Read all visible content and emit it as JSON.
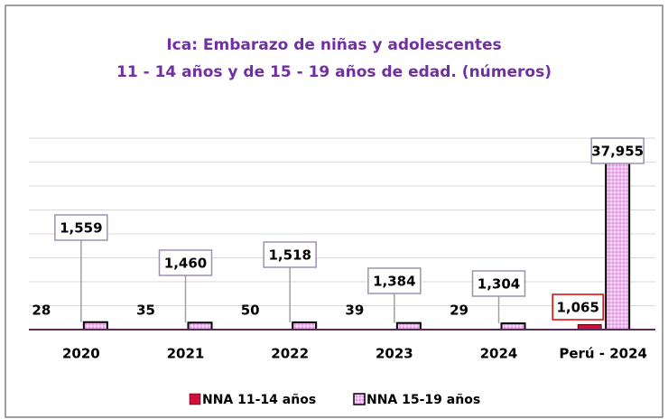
{
  "chart_data": {
    "type": "bar",
    "title": "Ica: Embarazo de niñas y adolescentes",
    "subtitle": "11 - 14 años y de 15 - 19 años de edad. (números)",
    "categories": [
      "2020",
      "2021",
      "2022",
      "2023",
      "2024",
      "Perú - 2024"
    ],
    "series": [
      {
        "name": "NNA 11-14 años",
        "color": "#d0103a",
        "values": [
          28,
          35,
          50,
          39,
          29,
          1065
        ],
        "value_labels": [
          "28",
          "35",
          "50",
          "39",
          "29",
          "1,065"
        ]
      },
      {
        "name": "NNA 15-19 años",
        "color": "#f0b8f0",
        "values": [
          1559,
          1460,
          1518,
          1384,
          1304,
          37955
        ],
        "value_labels": [
          "1,559",
          "1,460",
          "1,518",
          "1,384",
          "1,304",
          "37,955"
        ]
      }
    ],
    "ylim": [
      0,
      40000
    ],
    "yticks": [
      0,
      5000,
      10000,
      15000,
      20000,
      25000,
      30000,
      35000,
      40000
    ],
    "grid": true,
    "legend": "bottom"
  }
}
